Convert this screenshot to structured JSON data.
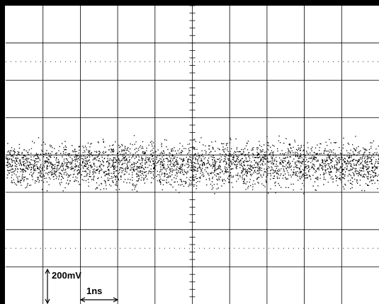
{
  "scale_labels": {
    "vertical": "200mV",
    "horizontal": "1ns"
  }
}
